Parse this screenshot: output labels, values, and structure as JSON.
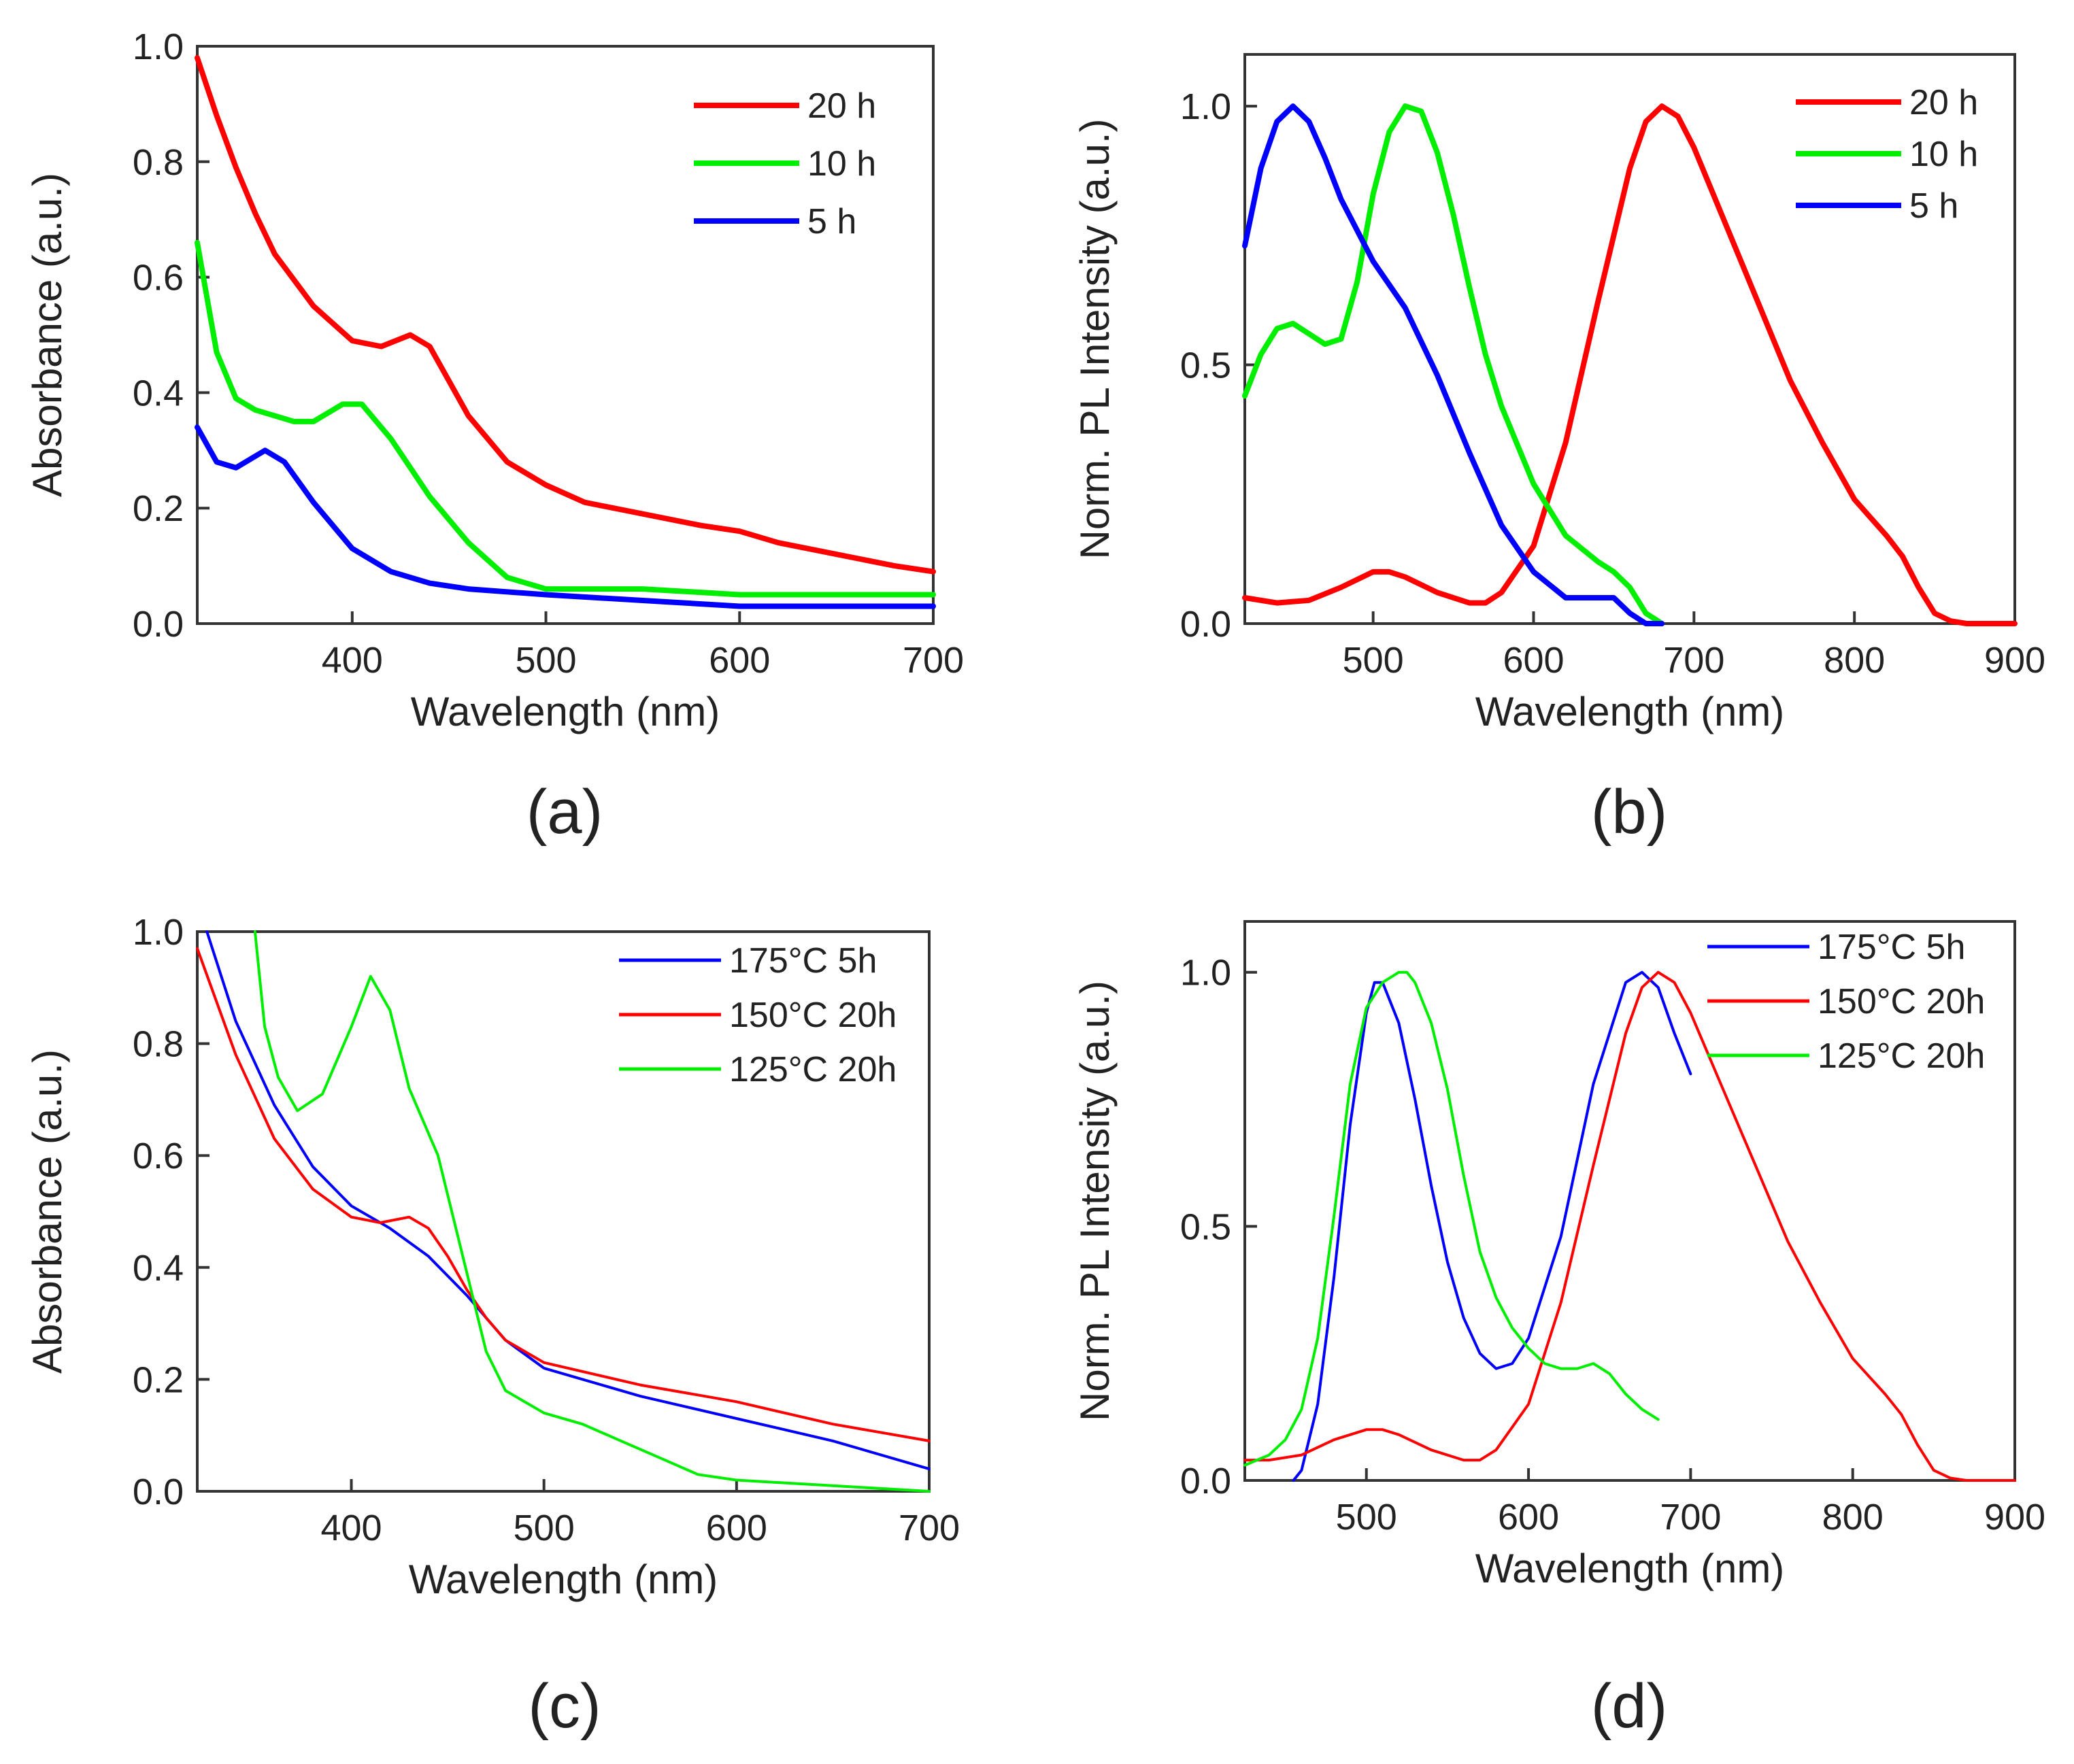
{
  "chart_data": [
    {
      "type": "line",
      "panel": "(a)",
      "xlabel": "Wavelength (nm)",
      "ylabel": "Absorbance (a.u.)",
      "xlim": [
        320,
        700
      ],
      "ylim": [
        0,
        1.0
      ],
      "xticks": [
        400,
        500,
        600,
        700
      ],
      "yticks": [
        0.0,
        0.2,
        0.4,
        0.6,
        0.8,
        1.0
      ],
      "ytick_labels": [
        "0.0",
        "0.2",
        "0.4",
        "0.6",
        "0.8",
        "1.0"
      ],
      "legend_position": "top-right",
      "series": [
        {
          "name": "20 h",
          "color": "#ff0000",
          "x": [
            320,
            330,
            340,
            350,
            360,
            380,
            400,
            415,
            430,
            440,
            450,
            460,
            480,
            500,
            520,
            550,
            580,
            600,
            620,
            650,
            680,
            700
          ],
          "y": [
            0.98,
            0.88,
            0.79,
            0.71,
            0.64,
            0.55,
            0.49,
            0.48,
            0.5,
            0.48,
            0.42,
            0.36,
            0.28,
            0.24,
            0.21,
            0.19,
            0.17,
            0.16,
            0.14,
            0.12,
            0.1,
            0.09
          ]
        },
        {
          "name": "10 h",
          "color": "#00ee00",
          "x": [
            320,
            330,
            340,
            350,
            360,
            370,
            380,
            395,
            405,
            420,
            440,
            460,
            480,
            500,
            550,
            600,
            650,
            700
          ],
          "y": [
            0.66,
            0.47,
            0.39,
            0.37,
            0.36,
            0.35,
            0.35,
            0.38,
            0.38,
            0.32,
            0.22,
            0.14,
            0.08,
            0.06,
            0.06,
            0.05,
            0.05,
            0.05
          ]
        },
        {
          "name": "5 h",
          "color": "#0000ff",
          "x": [
            320,
            330,
            340,
            350,
            355,
            365,
            380,
            400,
            420,
            440,
            460,
            500,
            550,
            600,
            650,
            700
          ],
          "y": [
            0.34,
            0.28,
            0.27,
            0.29,
            0.3,
            0.28,
            0.21,
            0.13,
            0.09,
            0.07,
            0.06,
            0.05,
            0.04,
            0.03,
            0.03,
            0.03
          ]
        }
      ]
    },
    {
      "type": "line",
      "panel": "(b)",
      "xlabel": "Wavelength (nm)",
      "ylabel": "Norm. PL Intensity (a.u.)",
      "xlim": [
        420,
        900
      ],
      "ylim": [
        0,
        1.1
      ],
      "xticks": [
        500,
        600,
        700,
        800,
        900
      ],
      "yticks": [
        0.0,
        0.5,
        1.0
      ],
      "ytick_labels": [
        "0.0",
        "0.5",
        "1.0"
      ],
      "legend_position": "top-right",
      "series": [
        {
          "name": "20 h",
          "color": "#ff0000",
          "x": [
            420,
            440,
            460,
            480,
            500,
            510,
            520,
            540,
            560,
            570,
            580,
            600,
            620,
            640,
            660,
            670,
            680,
            690,
            700,
            720,
            740,
            760,
            780,
            800,
            820,
            830,
            840,
            850,
            860,
            870,
            880,
            900
          ],
          "y": [
            0.05,
            0.04,
            0.045,
            0.07,
            0.1,
            0.1,
            0.09,
            0.06,
            0.04,
            0.04,
            0.06,
            0.15,
            0.35,
            0.62,
            0.88,
            0.97,
            1.0,
            0.98,
            0.92,
            0.77,
            0.62,
            0.47,
            0.35,
            0.24,
            0.17,
            0.13,
            0.07,
            0.02,
            0.005,
            0.0,
            0.0,
            0.0
          ]
        },
        {
          "name": "10 h",
          "color": "#00ee00",
          "x": [
            420,
            430,
            440,
            450,
            460,
            470,
            480,
            490,
            500,
            510,
            520,
            530,
            540,
            550,
            560,
            570,
            580,
            600,
            620,
            640,
            650,
            660,
            670,
            680
          ],
          "y": [
            0.44,
            0.52,
            0.57,
            0.58,
            0.56,
            0.54,
            0.55,
            0.66,
            0.83,
            0.95,
            1.0,
            0.99,
            0.91,
            0.79,
            0.65,
            0.52,
            0.42,
            0.27,
            0.17,
            0.12,
            0.1,
            0.07,
            0.02,
            0.0
          ]
        },
        {
          "name": "5 h",
          "color": "#0000ff",
          "x": [
            420,
            430,
            440,
            450,
            460,
            470,
            480,
            500,
            520,
            540,
            560,
            580,
            600,
            620,
            630,
            640,
            650,
            660,
            670,
            680
          ],
          "y": [
            0.73,
            0.88,
            0.97,
            1.0,
            0.97,
            0.9,
            0.82,
            0.7,
            0.61,
            0.48,
            0.33,
            0.19,
            0.1,
            0.05,
            0.05,
            0.05,
            0.05,
            0.02,
            0.0,
            0.0
          ]
        }
      ]
    },
    {
      "type": "line",
      "panel": "(c)",
      "xlabel": "Wavelength (nm)",
      "ylabel": "Absorbance (a.u.)",
      "xlim": [
        320,
        700
      ],
      "ylim": [
        0,
        1.0
      ],
      "xticks": [
        400,
        500,
        600,
        700
      ],
      "yticks": [
        0.0,
        0.2,
        0.4,
        0.6,
        0.8,
        1.0
      ],
      "ytick_labels": [
        "0.0",
        "0.2",
        "0.4",
        "0.6",
        "0.8",
        "1.0"
      ],
      "legend_position": "top-right",
      "series": [
        {
          "name": "175°C 5h",
          "color": "#0000ff",
          "x": [
            325,
            340,
            360,
            380,
            400,
            420,
            440,
            460,
            470,
            480,
            500,
            550,
            600,
            650,
            700
          ],
          "y": [
            1.0,
            0.84,
            0.69,
            0.58,
            0.51,
            0.47,
            0.42,
            0.35,
            0.31,
            0.27,
            0.22,
            0.17,
            0.13,
            0.09,
            0.04
          ]
        },
        {
          "name": "150°C 20h",
          "color": "#ff0000",
          "x": [
            320,
            340,
            360,
            380,
            400,
            415,
            430,
            440,
            450,
            460,
            470,
            480,
            500,
            550,
            600,
            650,
            700
          ],
          "y": [
            0.97,
            0.78,
            0.63,
            0.54,
            0.49,
            0.48,
            0.49,
            0.47,
            0.42,
            0.36,
            0.31,
            0.27,
            0.23,
            0.19,
            0.16,
            0.12,
            0.09
          ]
        },
        {
          "name": "125°C 20h",
          "color": "#00ee00",
          "x": [
            350,
            355,
            362,
            372,
            385,
            400,
            410,
            420,
            430,
            445,
            460,
            470,
            480,
            500,
            520,
            540,
            560,
            580,
            600,
            650,
            700
          ],
          "y": [
            1.0,
            0.83,
            0.74,
            0.68,
            0.71,
            0.83,
            0.92,
            0.86,
            0.72,
            0.6,
            0.39,
            0.25,
            0.18,
            0.14,
            0.12,
            0.09,
            0.06,
            0.03,
            0.02,
            0.01,
            0.0
          ]
        }
      ]
    },
    {
      "type": "line",
      "panel": "(d)",
      "xlabel": "Wavelength (nm)",
      "ylabel": "Norm. PL Intensity (a.u.)",
      "xlim": [
        425,
        900
      ],
      "ylim": [
        0,
        1.1
      ],
      "xticks": [
        500,
        600,
        700,
        800,
        900
      ],
      "yticks": [
        0.0,
        0.5,
        1.0
      ],
      "ytick_labels": [
        "0.0",
        "0.5",
        "1.0"
      ],
      "legend_position": "top-right",
      "series": [
        {
          "name": "175°C 5h",
          "color": "#0000ff",
          "x": [
            455,
            460,
            470,
            480,
            490,
            500,
            505,
            510,
            520,
            530,
            540,
            550,
            560,
            570,
            580,
            590,
            600,
            620,
            640,
            660,
            670,
            680,
            690,
            700
          ],
          "y": [
            0.0,
            0.02,
            0.15,
            0.4,
            0.7,
            0.92,
            0.98,
            0.98,
            0.9,
            0.75,
            0.58,
            0.43,
            0.32,
            0.25,
            0.22,
            0.23,
            0.28,
            0.48,
            0.78,
            0.98,
            1.0,
            0.97,
            0.88,
            0.8
          ]
        },
        {
          "name": "150°C 20h",
          "color": "#ff0000",
          "x": [
            425,
            440,
            460,
            480,
            500,
            510,
            520,
            540,
            560,
            570,
            580,
            600,
            620,
            640,
            660,
            670,
            680,
            690,
            700,
            720,
            740,
            760,
            780,
            800,
            820,
            830,
            840,
            850,
            860,
            870,
            880,
            900
          ],
          "y": [
            0.04,
            0.04,
            0.05,
            0.08,
            0.1,
            0.1,
            0.09,
            0.06,
            0.04,
            0.04,
            0.06,
            0.15,
            0.35,
            0.62,
            0.88,
            0.97,
            1.0,
            0.98,
            0.92,
            0.77,
            0.62,
            0.47,
            0.35,
            0.24,
            0.17,
            0.13,
            0.07,
            0.02,
            0.005,
            0.0,
            0.0,
            0.0
          ]
        },
        {
          "name": "125°C 20h",
          "color": "#00ee00",
          "x": [
            425,
            440,
            450,
            460,
            470,
            480,
            490,
            500,
            510,
            520,
            525,
            530,
            540,
            550,
            560,
            570,
            580,
            590,
            600,
            610,
            620,
            630,
            640,
            650,
            660,
            670,
            680
          ],
          "y": [
            0.03,
            0.05,
            0.08,
            0.14,
            0.28,
            0.52,
            0.78,
            0.93,
            0.98,
            1.0,
            1.0,
            0.98,
            0.9,
            0.77,
            0.6,
            0.45,
            0.36,
            0.3,
            0.26,
            0.23,
            0.22,
            0.22,
            0.23,
            0.21,
            0.17,
            0.14,
            0.12
          ]
        }
      ]
    }
  ]
}
